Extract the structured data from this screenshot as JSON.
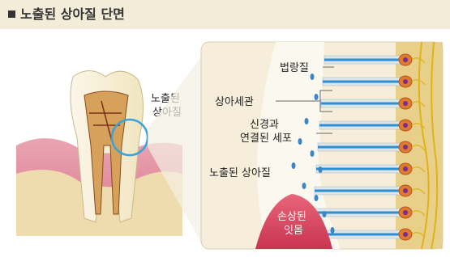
{
  "header": {
    "title": "노출된 상아질 단면"
  },
  "tooth": {
    "label": [
      "노출된",
      "상아질"
    ]
  },
  "cross_section": {
    "labels": {
      "enamel": "법랑질",
      "tubules": "상아세관",
      "nerve_cells": [
        "신경과",
        "연결된 세포"
      ],
      "exposed_dentin": "노출된 상아질",
      "damaged_gum": [
        "손상된",
        "잇몸"
      ]
    }
  }
}
